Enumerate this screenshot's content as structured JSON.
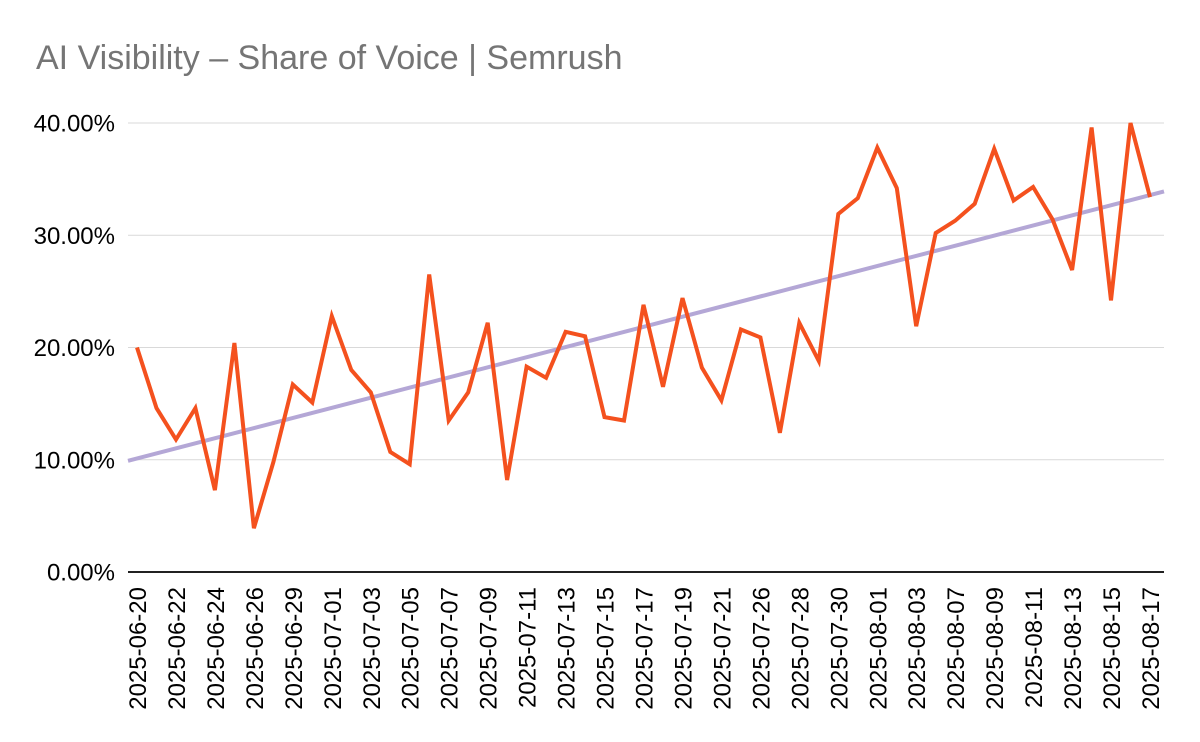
{
  "title": "AI Visibility – Share of Voice | Semrush",
  "colors": {
    "background": "#ffffff",
    "title_text": "#757575",
    "tick_text": "#000000",
    "gridline": "#d9d9d9",
    "axis_line": "#212121",
    "series_orange": "#f4511e",
    "trend_purple": "#b4a7d6"
  },
  "chart_data": {
    "type": "line",
    "title": "AI Visibility – Share of Voice | Semrush",
    "xlabel": "",
    "ylabel": "",
    "ylim": [
      0,
      40
    ],
    "grid": "horizontal",
    "legend": "none",
    "y_ticks": [
      {
        "label": "40.00%",
        "value": 40
      },
      {
        "label": "30.00%",
        "value": 30
      },
      {
        "label": "20.00%",
        "value": 20
      },
      {
        "label": "10.00%",
        "value": 10
      },
      {
        "label": "0.00%",
        "value": 0
      }
    ],
    "x_tick_labels": [
      "2025-06-20",
      "2025-06-22",
      "2025-06-24",
      "2025-06-26",
      "2025-06-29",
      "2025-07-01",
      "2025-07-03",
      "2025-07-05",
      "2025-07-07",
      "2025-07-09",
      "2025-07-11",
      "2025-07-13",
      "2025-07-15",
      "2025-07-17",
      "2025-07-19",
      "2025-07-21",
      "2025-07-26",
      "2025-07-28",
      "2025-07-30",
      "2025-08-01",
      "2025-08-03",
      "2025-08-07",
      "2025-08-09",
      "2025-08-11",
      "2025-08-13",
      "2025-08-15",
      "2025-08-17"
    ],
    "points_per_tick": 2,
    "series": [
      {
        "name": "share-of-voice",
        "type": "line",
        "color": "#f4511e",
        "values": [
          20.0,
          14.6,
          11.8,
          14.6,
          7.3,
          20.4,
          3.9,
          9.8,
          16.7,
          15.1,
          22.8,
          18.0,
          16.0,
          10.7,
          9.6,
          26.5,
          13.5,
          16.0,
          22.2,
          8.2,
          18.3,
          17.3,
          21.4,
          21.0,
          13.8,
          13.5,
          23.8,
          16.5,
          24.4,
          18.2,
          15.3,
          21.6,
          20.9,
          12.4,
          22.2,
          18.8,
          31.9,
          33.3,
          37.8,
          34.2,
          21.9,
          30.2,
          31.3,
          32.8,
          37.7,
          33.1,
          34.3,
          31.4,
          26.9,
          39.6,
          24.2,
          40.0,
          33.4
        ]
      },
      {
        "name": "trendline",
        "type": "linear-trend",
        "color": "#b4a7d6",
        "start_value": 9.9,
        "end_value": 33.9
      }
    ]
  }
}
